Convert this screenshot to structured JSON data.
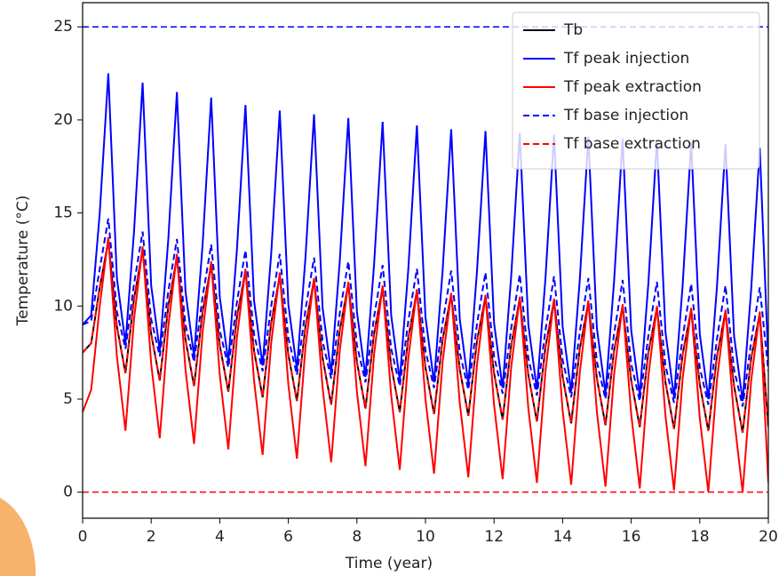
{
  "chart_data": {
    "type": "line",
    "xlabel": "Time (year)",
    "ylabel": "Temperature (°C)",
    "x": [
      0,
      0.25,
      0.5,
      0.75,
      1,
      1.25,
      1.5,
      1.75,
      2,
      2.25,
      2.5,
      2.75,
      3,
      3.25,
      3.5,
      3.75,
      4,
      4.25,
      4.5,
      4.75,
      5,
      5.25,
      5.5,
      5.75,
      6,
      6.25,
      6.5,
      6.75,
      7,
      7.25,
      7.5,
      7.75,
      8,
      8.25,
      8.5,
      8.75,
      9,
      9.25,
      9.5,
      9.75,
      10,
      10.25,
      10.5,
      10.75,
      11,
      11.25,
      11.5,
      11.75,
      12,
      12.25,
      12.5,
      12.75,
      13,
      13.25,
      13.5,
      13.75,
      14,
      14.25,
      14.5,
      14.75,
      15,
      15.25,
      15.5,
      15.75,
      16,
      16.25,
      16.5,
      16.75,
      17,
      17.25,
      17.5,
      17.75,
      18,
      18.25,
      18.5,
      18.75,
      19,
      19.25,
      19.5,
      19.75,
      20
    ],
    "series": [
      {
        "name": "Tb",
        "color": "#000000",
        "linestyle": "solid",
        "values": [
          7.5,
          8.0,
          11.0,
          13.5,
          8.9,
          6.4,
          10.4,
          13.0,
          8.5,
          6.0,
          10.0,
          12.6,
          8.2,
          5.7,
          9.7,
          12.2,
          7.9,
          5.4,
          9.4,
          11.9,
          7.6,
          5.1,
          9.1,
          11.6,
          7.4,
          4.9,
          8.9,
          11.4,
          7.2,
          4.7,
          8.7,
          11.2,
          7.0,
          4.5,
          8.5,
          11.0,
          6.8,
          4.3,
          8.3,
          10.8,
          6.7,
          4.2,
          8.2,
          10.6,
          6.6,
          4.1,
          8.1,
          10.5,
          6.4,
          3.9,
          7.9,
          10.4,
          6.3,
          3.8,
          7.8,
          10.3,
          6.2,
          3.7,
          7.7,
          10.2,
          6.1,
          3.6,
          7.6,
          10.0,
          6.0,
          3.5,
          7.5,
          9.9,
          5.9,
          3.4,
          7.4,
          9.8,
          5.8,
          3.3,
          7.3,
          9.7,
          5.7,
          3.2,
          7.2,
          9.6,
          3.5
        ]
      },
      {
        "name": "Tf peak injection",
        "color": "#0000ff",
        "linestyle": "solid",
        "values": [
          9.0,
          9.5,
          15.0,
          22.5,
          11.5,
          8.0,
          14.0,
          22.0,
          11.1,
          7.6,
          13.6,
          21.5,
          10.8,
          7.3,
          13.3,
          21.2,
          10.5,
          7.0,
          13.0,
          20.8,
          10.3,
          6.8,
          12.8,
          20.5,
          10.1,
          6.6,
          12.6,
          20.3,
          9.9,
          6.4,
          12.4,
          20.1,
          9.7,
          6.2,
          12.2,
          19.9,
          9.5,
          6.0,
          12.0,
          19.7,
          9.4,
          5.9,
          11.9,
          19.5,
          9.3,
          5.8,
          11.8,
          19.4,
          9.1,
          5.6,
          11.6,
          19.3,
          9.0,
          5.5,
          11.5,
          19.2,
          8.9,
          5.4,
          11.4,
          19.1,
          8.8,
          5.3,
          11.3,
          19.0,
          8.7,
          5.2,
          11.2,
          18.9,
          8.6,
          5.1,
          11.1,
          18.8,
          8.5,
          5.0,
          11.0,
          18.7,
          8.4,
          4.9,
          10.9,
          18.5,
          7.0
        ]
      },
      {
        "name": "Tf peak extraction",
        "color": "#ff0000",
        "linestyle": "solid",
        "values": [
          4.3,
          5.5,
          10.0,
          13.7,
          7.3,
          3.3,
          9.3,
          13.2,
          6.9,
          2.9,
          8.9,
          12.8,
          6.6,
          2.6,
          8.6,
          12.4,
          6.3,
          2.3,
          8.3,
          12.0,
          6.0,
          2.0,
          8.0,
          11.8,
          5.8,
          1.8,
          7.8,
          11.5,
          5.6,
          1.6,
          7.6,
          11.3,
          5.4,
          1.4,
          7.4,
          11.1,
          5.2,
          1.2,
          7.2,
          10.9,
          5.0,
          1.0,
          7.0,
          10.7,
          4.8,
          0.8,
          6.8,
          10.6,
          4.7,
          0.7,
          6.7,
          10.5,
          4.5,
          0.5,
          6.5,
          10.4,
          4.4,
          0.4,
          6.4,
          10.3,
          4.3,
          0.3,
          6.3,
          10.1,
          4.2,
          0.2,
          6.2,
          10.0,
          4.1,
          0.1,
          6.1,
          9.9,
          4.0,
          0.0,
          6.0,
          9.8,
          4.0,
          0.0,
          6.0,
          9.7,
          0.5
        ]
      },
      {
        "name": "Tf base injection",
        "color": "#0000ff",
        "linestyle": "dashed",
        "values": [
          9.0,
          9.2,
          12.0,
          14.7,
          9.7,
          7.7,
          11.2,
          14.0,
          9.3,
          7.3,
          10.8,
          13.6,
          9.0,
          7.0,
          10.5,
          13.3,
          8.7,
          6.7,
          10.2,
          13.0,
          8.5,
          6.5,
          10.0,
          12.8,
          8.3,
          6.3,
          9.8,
          12.6,
          8.1,
          6.1,
          9.6,
          12.4,
          7.9,
          5.9,
          9.4,
          12.2,
          7.7,
          5.7,
          9.2,
          12.0,
          7.6,
          5.6,
          9.1,
          11.9,
          7.5,
          5.5,
          9.0,
          11.8,
          7.3,
          5.3,
          8.8,
          11.7,
          7.2,
          5.2,
          8.7,
          11.6,
          7.1,
          5.1,
          8.6,
          11.5,
          7.0,
          5.0,
          8.5,
          11.4,
          6.9,
          4.9,
          8.4,
          11.3,
          6.8,
          4.8,
          8.3,
          11.2,
          6.7,
          4.7,
          8.2,
          11.1,
          6.6,
          4.6,
          8.1,
          11.0,
          6.5
        ]
      },
      {
        "name": "Tf base extraction",
        "color": "#ff0000",
        "linestyle": "dashed",
        "values": [
          7.5,
          8.0,
          11.0,
          13.5,
          8.9,
          6.4,
          10.4,
          13.0,
          8.5,
          6.0,
          10.0,
          12.6,
          8.2,
          5.7,
          9.7,
          12.2,
          7.9,
          5.4,
          9.4,
          11.9,
          7.6,
          5.1,
          9.1,
          11.6,
          7.4,
          4.9,
          8.9,
          11.4,
          7.2,
          4.7,
          8.7,
          11.2,
          7.0,
          4.5,
          8.5,
          11.0,
          6.8,
          4.3,
          8.3,
          10.8,
          6.7,
          4.2,
          8.2,
          10.6,
          6.6,
          4.1,
          8.1,
          10.5,
          6.4,
          3.9,
          7.9,
          10.4,
          6.3,
          3.8,
          7.8,
          10.3,
          6.2,
          3.7,
          7.7,
          10.2,
          6.1,
          3.6,
          7.6,
          10.0,
          6.0,
          3.5,
          7.5,
          9.9,
          5.9,
          3.4,
          7.4,
          9.8,
          5.8,
          3.3,
          7.3,
          9.7,
          5.7,
          3.2,
          7.2,
          9.6,
          3.5
        ]
      }
    ],
    "hlines": [
      {
        "y": 25,
        "color": "#0000ff",
        "linestyle": "dashed"
      },
      {
        "y": 0,
        "color": "#ff0000",
        "linestyle": "dashed"
      }
    ],
    "xlim": [
      0,
      20
    ],
    "ylim": [
      -1.4,
      26.3
    ],
    "xticks": [
      0,
      2,
      4,
      6,
      8,
      10,
      12,
      14,
      16,
      18,
      20
    ],
    "yticks": [
      0,
      5,
      10,
      15,
      20,
      25
    ],
    "grid": false,
    "legend": "upper right"
  }
}
